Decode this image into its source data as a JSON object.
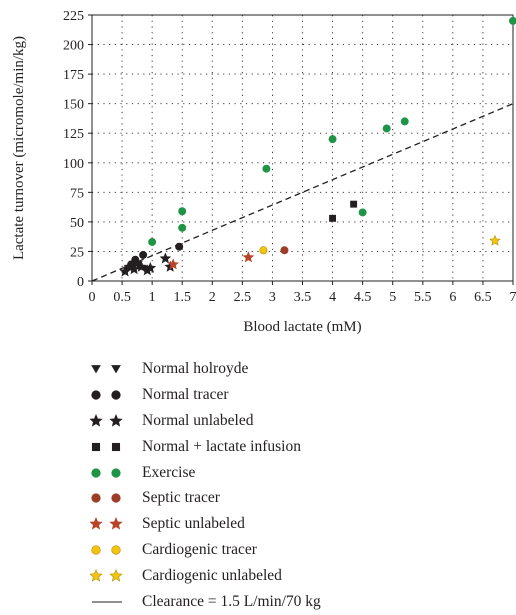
{
  "chart_data": {
    "type": "scatter",
    "title": "",
    "xlabel": "Blood lactate (mM)",
    "ylabel": "Lactate turnover (micromole/min/kg)",
    "xlim": [
      0,
      7
    ],
    "ylim": [
      0,
      225
    ],
    "xticks": [
      "0",
      "0.5",
      "1",
      "1.5",
      "2",
      "2.5",
      "3",
      "3.5",
      "4",
      "4.5",
      "5",
      "5.5",
      "6",
      "6.5",
      "7"
    ],
    "yticks": [
      "0",
      "25",
      "50",
      "75",
      "100",
      "125",
      "150",
      "175",
      "200",
      "225"
    ],
    "grid": true,
    "legend_position": "below",
    "series": [
      {
        "name": "Normal holroyde",
        "marker": "triangle-down",
        "color": "#231f20",
        "points": [
          [
            0.58,
            9
          ],
          [
            0.68,
            11
          ],
          [
            0.78,
            12
          ],
          [
            0.88,
            10
          ]
        ]
      },
      {
        "name": "Normal tracer",
        "marker": "circle",
        "color": "#231f20",
        "points": [
          [
            0.65,
            14
          ],
          [
            0.72,
            18
          ],
          [
            0.85,
            22
          ],
          [
            1.45,
            29
          ]
        ]
      },
      {
        "name": "Normal unlabeled",
        "marker": "star",
        "color": "#231f20",
        "points": [
          [
            0.55,
            8
          ],
          [
            0.62,
            12
          ],
          [
            0.7,
            10
          ],
          [
            0.75,
            15
          ],
          [
            0.82,
            12
          ],
          [
            0.92,
            9
          ],
          [
            0.97,
            11
          ],
          [
            1.22,
            19
          ],
          [
            1.3,
            12
          ]
        ]
      },
      {
        "name": "Normal + lactate infusion",
        "marker": "square",
        "color": "#231f20",
        "points": [
          [
            4.0,
            53
          ],
          [
            4.35,
            65
          ]
        ]
      },
      {
        "name": "Exercise",
        "marker": "circle",
        "color": "#1f9447",
        "points": [
          [
            1.0,
            33
          ],
          [
            1.5,
            45
          ],
          [
            1.5,
            59
          ],
          [
            2.9,
            95
          ],
          [
            4.0,
            120
          ],
          [
            4.5,
            58
          ],
          [
            4.9,
            129
          ],
          [
            5.2,
            135
          ],
          [
            7.0,
            220
          ]
        ]
      },
      {
        "name": "Septic tracer",
        "marker": "circle",
        "color": "#9c3d26",
        "points": [
          [
            3.2,
            26
          ]
        ]
      },
      {
        "name": "Septic unlabeled",
        "marker": "star",
        "color": "#b8452a",
        "points": [
          [
            1.35,
            14
          ],
          [
            2.6,
            20
          ]
        ]
      },
      {
        "name": "Cardiogenic tracer",
        "marker": "circle",
        "color": "#f2c40f",
        "points": [
          [
            2.85,
            26
          ]
        ]
      },
      {
        "name": "Cardiogenic unlabeled",
        "marker": "star",
        "color": "#f2c40f",
        "points": [
          [
            6.7,
            34
          ]
        ]
      },
      {
        "name": "Clearance = 1.5 L/min/70 kg",
        "marker": "dashed-line",
        "color": "#231f20",
        "points": [
          [
            0,
            0
          ],
          [
            7,
            150
          ]
        ]
      }
    ]
  }
}
